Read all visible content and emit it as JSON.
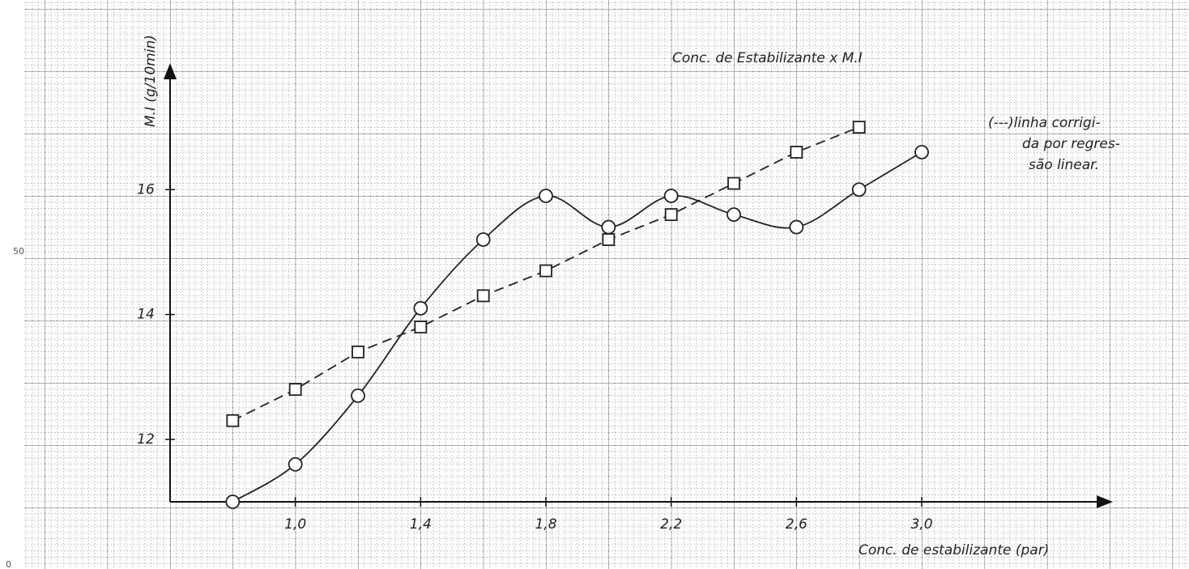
{
  "chart_data": {
    "type": "line",
    "title": "Conc. de Estabilizante x M.I",
    "annotation": [
      "(---)linha corrigi-",
      "da por regres-",
      "são linear."
    ],
    "x_label": "Conc. de estabilizante (par)",
    "y_label": "M.I (g/10min)",
    "margin_marks": [
      "50",
      "0"
    ],
    "xlim": [
      0.6,
      3.6
    ],
    "ylim": [
      11,
      18
    ],
    "xticks": [
      {
        "value": 1.0,
        "label": "1,0"
      },
      {
        "value": 1.4,
        "label": "1,4"
      },
      {
        "value": 1.8,
        "label": "1,8"
      },
      {
        "value": 2.2,
        "label": "2,2"
      },
      {
        "value": 2.6,
        "label": "2,6"
      },
      {
        "value": 3.0,
        "label": "3,0"
      }
    ],
    "yticks": [
      12,
      14,
      16
    ],
    "series": [
      {
        "marker": "circle",
        "dashed": false,
        "color": "#222",
        "x": [
          0.8,
          1.0,
          1.2,
          1.4,
          1.6,
          1.8,
          2.0,
          2.2,
          2.4,
          2.6,
          2.8,
          3.0
        ],
        "values": [
          11.0,
          11.6,
          12.7,
          14.1,
          15.2,
          15.9,
          15.4,
          15.9,
          15.6,
          15.4,
          16.0,
          16.6
        ]
      },
      {
        "marker": "square",
        "dashed": true,
        "color": "#222",
        "x": [
          0.8,
          1.0,
          1.2,
          1.4,
          1.6,
          1.8,
          2.0,
          2.2,
          2.4,
          2.6,
          2.8
        ],
        "values": [
          12.3,
          12.8,
          13.4,
          13.8,
          14.3,
          14.7,
          15.2,
          15.6,
          16.1,
          16.6,
          17.0
        ]
      }
    ]
  }
}
